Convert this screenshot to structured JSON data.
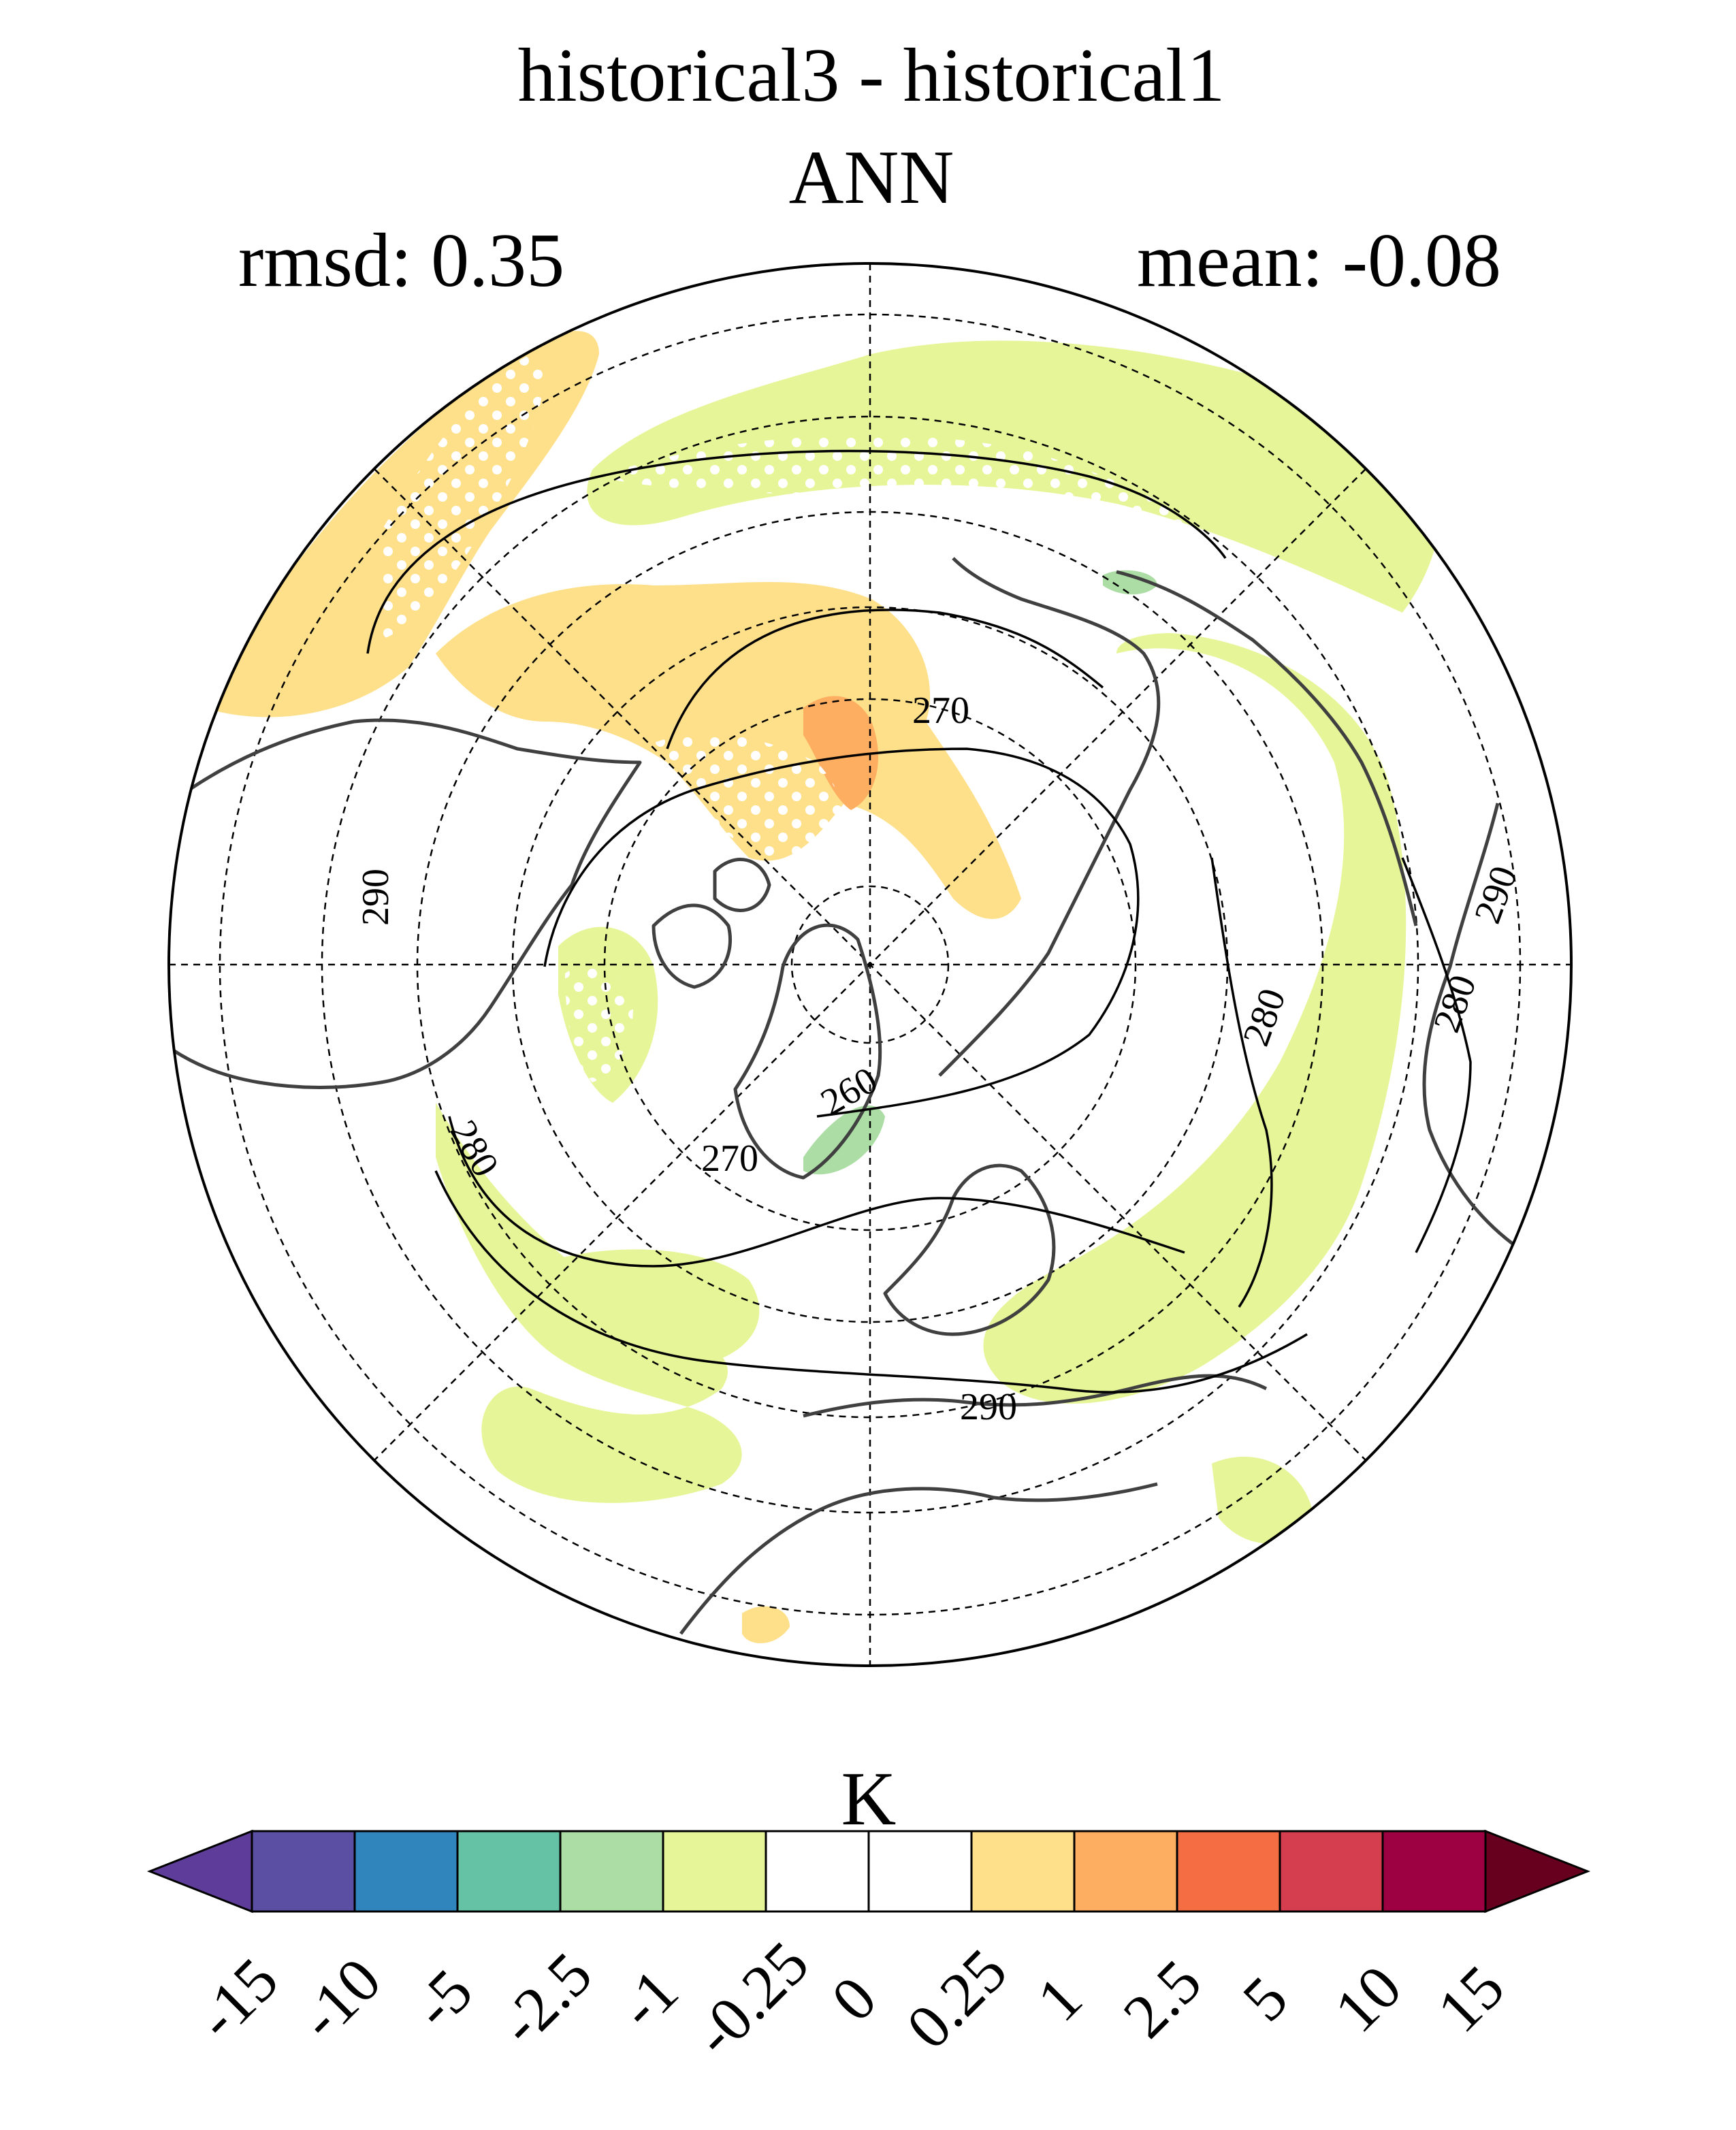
{
  "figure": {
    "title_line1": "historical3 - historical1",
    "title_line2": "ANN",
    "rmsd_label": "rmsd: 0.35",
    "mean_label": "mean: -0.08"
  },
  "map": {
    "projection": "north-polar-stereographic",
    "contour_labels": [
      "270",
      "290",
      "260",
      "270",
      "280",
      "290",
      "280",
      "280",
      "290"
    ],
    "land_outline_color": "#404040",
    "graticule_color": "#000000",
    "stipple_color": "#ffffff"
  },
  "colorbar": {
    "unit_label": "K",
    "tick_labels": [
      "-15",
      "-10",
      "-5",
      "-2.5",
      "-1",
      "-0.25",
      "0",
      "0.25",
      "1",
      "2.5",
      "5",
      "10",
      "15"
    ],
    "colors": [
      "#5e3c99",
      "#5a4fa2",
      "#3185bd",
      "#66c2a5",
      "#abdda4",
      "#e6f598",
      "#ffffff",
      "#ffffff",
      "#fee08b",
      "#fdae61",
      "#f46d43",
      "#d53e4f",
      "#9e0142",
      "#67001f"
    ]
  }
}
